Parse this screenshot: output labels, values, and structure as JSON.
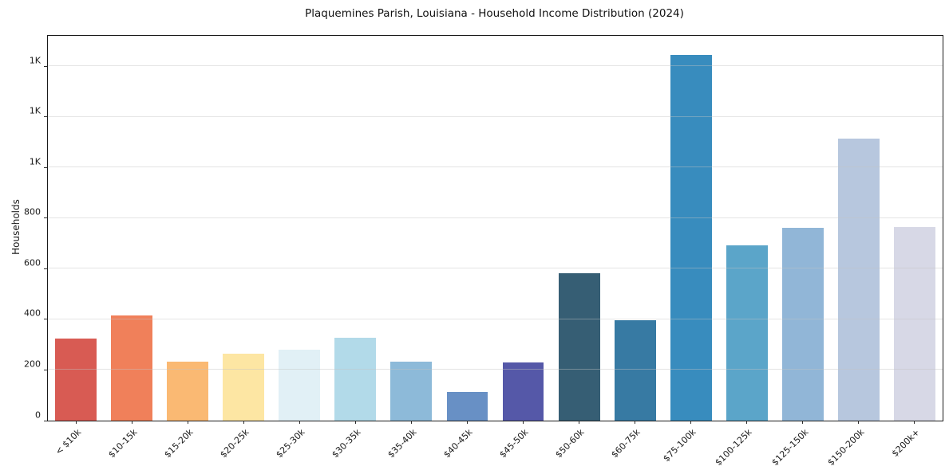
{
  "chart_data": {
    "type": "bar",
    "title": "Plaquemines Parish, Louisiana - Household Income Distribution (2024)",
    "xlabel": "",
    "ylabel": "Households",
    "categories": [
      "< $10k",
      "$10-15k",
      "$15-20k",
      "$20-25k",
      "$25-30k",
      "$30-35k",
      "$35-40k",
      "$40-45k",
      "$45-50k",
      "$50-60k",
      "$60-75k",
      "$75-100k",
      "$100-125k",
      "$125-150k",
      "$150-200k",
      "$200k+"
    ],
    "values": [
      325,
      415,
      232,
      264,
      280,
      327,
      232,
      113,
      229,
      581,
      396,
      1443,
      691,
      763,
      1115,
      766
    ],
    "bar_colors": [
      "#d85b53",
      "#f0805a",
      "#fab973",
      "#fde6a3",
      "#e1f0f6",
      "#b2dae9",
      "#8dbad9",
      "#6890c5",
      "#5558a8",
      "#365e74",
      "#377aa3",
      "#388cbe",
      "#5ba5c9",
      "#91b6d7",
      "#b7c7de",
      "#d7d8e6"
    ],
    "ylim": [
      0,
      1520
    ],
    "yticks": {
      "values": [
        0,
        200,
        400,
        600,
        800,
        1000,
        1200,
        1400
      ],
      "labels": [
        "0",
        "200",
        "400",
        "600",
        "800",
        "1K",
        "1K",
        "1K"
      ]
    },
    "grid": "horizontal",
    "legend": "none",
    "background": "#ffffff"
  }
}
